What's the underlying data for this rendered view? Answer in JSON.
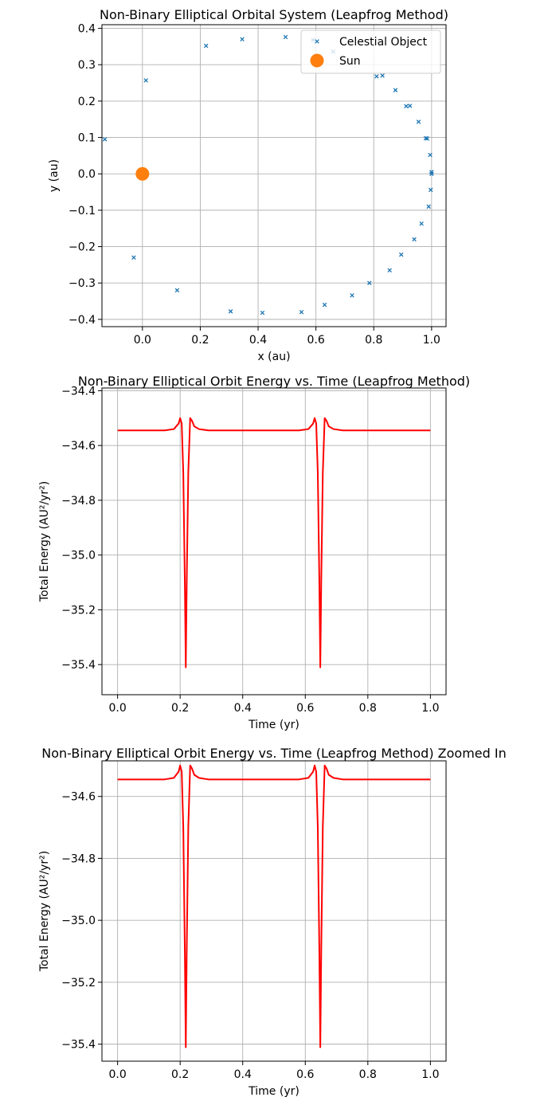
{
  "chart_data": [
    {
      "type": "scatter",
      "title": "Non-Binary Elliptical Orbital System (Leapfrog Method)",
      "xlabel": "x (au)",
      "ylabel": "y (au)",
      "xlim": [
        -0.14,
        1.05
      ],
      "ylim": [
        -0.42,
        0.41
      ],
      "xticks": [
        0.0,
        0.2,
        0.4,
        0.6,
        0.8,
        1.0
      ],
      "xtick_labels": [
        "0.0",
        "0.2",
        "0.4",
        "0.6",
        "0.8",
        "1.0"
      ],
      "yticks": [
        -0.4,
        -0.3,
        -0.2,
        -0.1,
        0.0,
        0.1,
        0.2,
        0.3,
        0.4
      ],
      "ytick_labels": [
        "−0.4",
        "−0.3",
        "−0.2",
        "−0.1",
        "0.0",
        "0.1",
        "0.2",
        "0.3",
        "0.4"
      ],
      "grid": true,
      "legend_position": "top-right",
      "series": [
        {
          "name": "Celestial Object",
          "marker": "x",
          "color": "#1f77b4",
          "points": [
            [
              1.0,
              0.0
            ],
            [
              1.0,
              0.005
            ],
            [
              0.995,
              0.052
            ],
            [
              0.98,
              0.098
            ],
            [
              0.955,
              0.143
            ],
            [
              0.925,
              0.187
            ],
            [
              0.912,
              0.186
            ],
            [
              0.875,
              0.23
            ],
            [
              0.83,
              0.27
            ],
            [
              0.81,
              0.268
            ],
            [
              0.66,
              0.336
            ],
            [
              0.59,
              0.368
            ],
            [
              0.495,
              0.376
            ],
            [
              0.345,
              0.37
            ],
            [
              0.22,
              0.352
            ],
            [
              0.012,
              0.257
            ],
            [
              -0.13,
              0.095
            ],
            [
              -0.03,
              -0.23
            ],
            [
              0.12,
              -0.32
            ],
            [
              0.305,
              -0.378
            ],
            [
              0.415,
              -0.382
            ],
            [
              0.55,
              -0.38
            ],
            [
              0.63,
              -0.36
            ],
            [
              0.725,
              -0.334
            ],
            [
              0.785,
              -0.3
            ],
            [
              0.855,
              -0.265
            ],
            [
              0.895,
              -0.222
            ],
            [
              0.94,
              -0.18
            ],
            [
              0.965,
              -0.137
            ],
            [
              0.99,
              -0.09
            ],
            [
              0.997,
              -0.044
            ],
            [
              0.985,
              0.097
            ]
          ]
        },
        {
          "name": "Sun",
          "marker": "o",
          "color": "#ff7f0e",
          "points": [
            [
              0.0,
              0.0
            ]
          ]
        }
      ]
    },
    {
      "type": "line",
      "title": "Non-Binary Elliptical Orbit Energy vs. Time (Leapfrog Method)",
      "xlabel": "Time (yr)",
      "ylabel": "Total Energy (AU²/yr²)",
      "xlim": [
        -0.05,
        1.05
      ],
      "ylim": [
        -35.51,
        -34.39
      ],
      "xticks": [
        0.0,
        0.2,
        0.4,
        0.6,
        0.8,
        1.0
      ],
      "xtick_labels": [
        "0.0",
        "0.2",
        "0.4",
        "0.6",
        "0.8",
        "1.0"
      ],
      "yticks": [
        -34.4,
        -34.6,
        -34.8,
        -35.0,
        -35.2,
        -35.4
      ],
      "ytick_labels": [
        "−34.4",
        "−34.6",
        "−34.8",
        "−35.0",
        "−35.2",
        "−35.4"
      ],
      "grid": true,
      "series": [
        {
          "color": "#ff0000",
          "x": [
            0.0,
            0.15,
            0.18,
            0.195,
            0.2,
            0.205,
            0.21,
            0.215,
            0.218,
            0.221,
            0.226,
            0.232,
            0.238,
            0.245,
            0.26,
            0.29,
            0.35,
            0.58,
            0.61,
            0.625,
            0.63,
            0.635,
            0.64,
            0.645,
            0.648,
            0.651,
            0.656,
            0.662,
            0.668,
            0.675,
            0.69,
            0.72,
            0.78,
            1.0
          ],
          "y": [
            -34.545,
            -34.545,
            -34.54,
            -34.52,
            -34.5,
            -34.52,
            -34.7,
            -35.1,
            -35.41,
            -35.1,
            -34.7,
            -34.5,
            -34.51,
            -34.53,
            -34.54,
            -34.545,
            -34.545,
            -34.545,
            -34.54,
            -34.52,
            -34.5,
            -34.52,
            -34.7,
            -35.1,
            -35.41,
            -35.1,
            -34.7,
            -34.5,
            -34.51,
            -34.53,
            -34.54,
            -34.545,
            -34.545,
            -34.545
          ]
        }
      ]
    },
    {
      "type": "line",
      "title": "Non-Binary Elliptical Orbit Energy vs. Time (Leapfrog Method) Zoomed In",
      "xlabel": "Time (yr)",
      "ylabel": "Total Energy (AU²/yr²)",
      "xlim": [
        -0.05,
        1.05
      ],
      "ylim": [
        -35.455,
        -34.485
      ],
      "xticks": [
        0.0,
        0.2,
        0.4,
        0.6,
        0.8,
        1.0
      ],
      "xtick_labels": [
        "0.0",
        "0.2",
        "0.4",
        "0.6",
        "0.8",
        "1.0"
      ],
      "yticks": [
        -34.6,
        -34.8,
        -35.0,
        -35.2,
        -35.4
      ],
      "ytick_labels": [
        "−34.6",
        "−34.8",
        "−35.0",
        "−35.2",
        "−35.4"
      ],
      "grid": true,
      "series": [
        {
          "color": "#ff0000",
          "x": [
            0.0,
            0.15,
            0.18,
            0.195,
            0.2,
            0.205,
            0.21,
            0.215,
            0.218,
            0.221,
            0.226,
            0.232,
            0.238,
            0.245,
            0.26,
            0.29,
            0.35,
            0.58,
            0.61,
            0.625,
            0.63,
            0.635,
            0.64,
            0.645,
            0.648,
            0.651,
            0.656,
            0.662,
            0.668,
            0.675,
            0.69,
            0.72,
            0.78,
            1.0
          ],
          "y": [
            -34.545,
            -34.545,
            -34.54,
            -34.52,
            -34.5,
            -34.52,
            -34.7,
            -35.1,
            -35.41,
            -35.1,
            -34.7,
            -34.5,
            -34.51,
            -34.53,
            -34.54,
            -34.545,
            -34.545,
            -34.545,
            -34.54,
            -34.52,
            -34.5,
            -34.52,
            -34.7,
            -35.1,
            -35.41,
            -35.1,
            -34.7,
            -34.5,
            -34.51,
            -34.53,
            -34.54,
            -34.545,
            -34.545,
            -34.545
          ]
        }
      ]
    }
  ]
}
